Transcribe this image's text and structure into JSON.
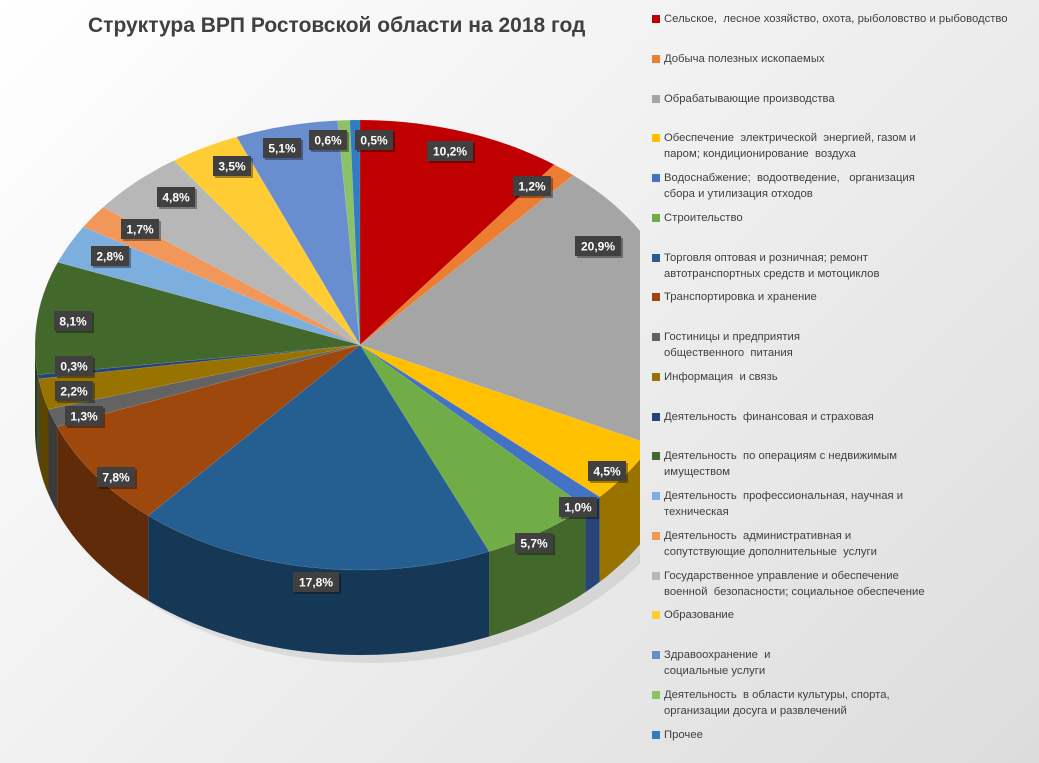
{
  "chart_data": {
    "type": "pie",
    "style": "3d",
    "title": "Структура ВРП Ростовской области на 2018 год",
    "legend_position": "right",
    "start": "top",
    "direction": "clockwise",
    "series": [
      {
        "name": "Сельское,  лесное хозяйство, охота, рыболовство и рыбоводство",
        "value": 10.2,
        "label": "10,2%",
        "color": "#c00000"
      },
      {
        "name": "Добыча полезных ископаемых",
        "value": 1.2,
        "label": "1,2%",
        "color": "#ed7d31"
      },
      {
        "name": "Обрабатывающие производства",
        "value": 20.9,
        "label": "20,9%",
        "color": "#a5a5a5"
      },
      {
        "name": "Обеспечение  электрической  энергией, газом и\nпаром; кондиционирование  воздуха",
        "value": 4.5,
        "label": "4,5%",
        "color": "#ffc000"
      },
      {
        "name": "Водоснабжение;  водоотведение,   организация\nсбора и утилизация отходов",
        "value": 1.0,
        "label": "1,0%",
        "color": "#4472c4"
      },
      {
        "name": "Строительство",
        "value": 5.7,
        "label": "5,7%",
        "color": "#70ad47"
      },
      {
        "name": "Торговля оптовая и розничная; ремонт\nавтотранспортных средств и мотоциклов",
        "value": 17.8,
        "label": "17,8%",
        "color": "#255e91"
      },
      {
        "name": "Транспортировка и хранение",
        "value": 7.8,
        "label": "7,8%",
        "color": "#9e480e"
      },
      {
        "name": "Гостиницы и предприятия\nобщественного  питания",
        "value": 1.3,
        "label": "1,3%",
        "color": "#636363"
      },
      {
        "name": "Информация  и связь",
        "value": 2.2,
        "label": "2,2%",
        "color": "#997300"
      },
      {
        "name": "Деятельность  финансовая и страховая",
        "value": 0.3,
        "label": "0,3%",
        "color": "#264478"
      },
      {
        "name": "Деятельность  по операциям с недвижимым\nимуществом",
        "value": 8.1,
        "label": "8,1%",
        "color": "#43682b"
      },
      {
        "name": "Деятельность  профессиональная, научная и\nтехническая",
        "value": 2.8,
        "label": "2,8%",
        "color": "#7cafdd"
      },
      {
        "name": "Деятельность  административная и\nсопутствующие дополнительные  услуги",
        "value": 1.7,
        "label": "1,7%",
        "color": "#f1975a"
      },
      {
        "name": "Государственное управление и обеспечение\nвоенной  безопасности; социальное обеспечение",
        "value": 4.8,
        "label": "4,8%",
        "color": "#b7b7b7"
      },
      {
        "name": "Образование",
        "value": 3.5,
        "label": "3,5%",
        "color": "#ffcd33"
      },
      {
        "name": "Здравоохранение  и\nсоциальные услуги",
        "value": 5.1,
        "label": "5,1%",
        "color": "#698ed0"
      },
      {
        "name": "Деятельность  в области культуры, спорта,\nорганизации досуга и развлечений",
        "value": 0.6,
        "label": "0,6%",
        "color": "#8cc168"
      },
      {
        "name": "Прочее",
        "value": 0.5,
        "label": "0,5%",
        "color": "#327dc2"
      }
    ]
  }
}
